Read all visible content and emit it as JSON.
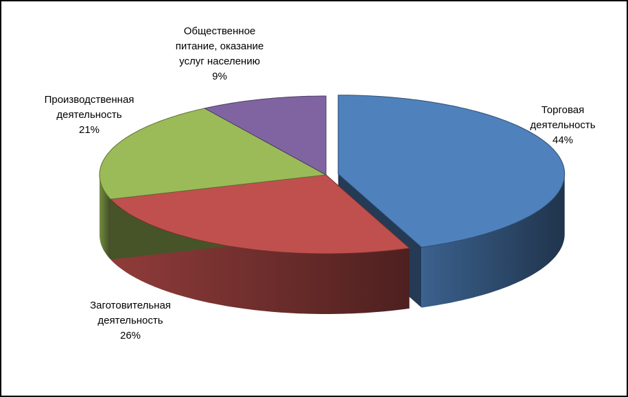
{
  "chart_data": {
    "type": "pie",
    "categories": [
      "Торговая\nдеятельность",
      "Заготовительная\nдеятельность",
      "Производственная\nдеятельность",
      "Общественное\nпитание, оказание\nуслуг населению"
    ],
    "values": [
      44,
      26,
      21,
      9
    ],
    "value_labels": [
      "44%",
      "26%",
      "21%",
      "9%"
    ],
    "colors": [
      "#4f81bd",
      "#c0504d",
      "#9bbb59",
      "#8064a2"
    ]
  }
}
